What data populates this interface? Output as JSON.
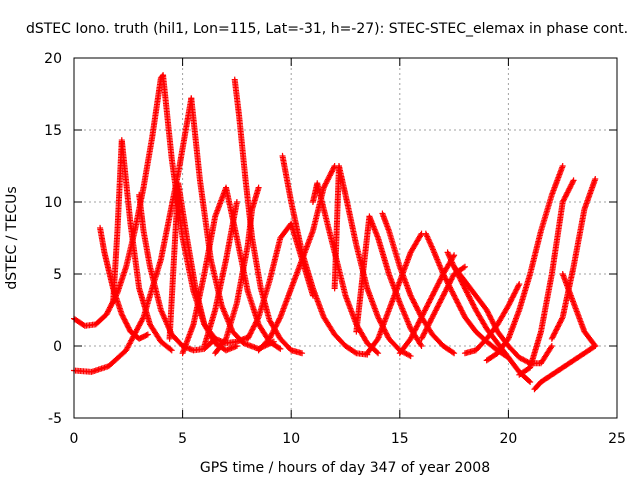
{
  "chart_data": {
    "type": "scatter",
    "title": "dSTEC Iono. truth (hil1, Lon=115, Lat=-31, h=-27): STEC-STEC_elemax in phase cont.",
    "xlabel": "GPS time / hours of day 347 of year 2008",
    "ylabel": "dSTEC  / TECUs",
    "xlim": [
      0,
      25
    ],
    "ylim": [
      -5,
      20
    ],
    "xticks": [
      0,
      5,
      10,
      15,
      20,
      25
    ],
    "yticks": [
      -5,
      0,
      5,
      10,
      15,
      20
    ],
    "grid": true,
    "marker": "+",
    "color": "#ff0000",
    "series": [
      {
        "x": [
          0.0,
          0.5,
          1.0,
          1.5,
          2.0,
          2.4,
          2.8,
          3.2,
          3.6,
          4.0,
          4.1
        ],
        "y": [
          1.9,
          1.4,
          1.5,
          2.2,
          3.7,
          5.5,
          8.0,
          11.0,
          14.5,
          18.6,
          18.8
        ]
      },
      {
        "x": [
          4.1,
          4.5,
          5.0,
          5.5,
          6.0,
          6.5,
          7.0,
          7.5,
          8.0
        ],
        "y": [
          18.8,
          13.0,
          7.5,
          3.8,
          1.5,
          0.5,
          0.2,
          0.3,
          0.6
        ]
      },
      {
        "x": [
          0.0,
          0.8,
          1.6,
          2.4,
          3.2,
          4.0,
          4.8,
          5.4
        ],
        "y": [
          -1.7,
          -1.8,
          -1.4,
          -0.3,
          2.0,
          6.0,
          12.0,
          17.2
        ]
      },
      {
        "x": [
          5.4,
          5.8,
          6.3,
          6.8,
          7.3,
          7.8,
          8.5,
          9.2
        ],
        "y": [
          17.2,
          11.5,
          6.0,
          2.8,
          1.0,
          0.2,
          -0.2,
          0.3
        ]
      },
      {
        "x": [
          1.2,
          1.4,
          1.8,
          2.2,
          2.6,
          3.0,
          3.4
        ],
        "y": [
          8.2,
          6.5,
          4.0,
          2.2,
          1.0,
          0.5,
          0.8
        ]
      },
      {
        "x": [
          1.8,
          2.0,
          2.2,
          2.6,
          3.0,
          3.5,
          4.0,
          4.5
        ],
        "y": [
          3.0,
          8.0,
          14.3,
          8.5,
          4.0,
          1.5,
          0.3,
          -0.3
        ]
      },
      {
        "x": [
          3.0,
          3.2,
          3.5,
          4.0,
          4.5,
          5.0,
          5.5,
          6.0,
          6.5
        ],
        "y": [
          10.5,
          8.0,
          5.5,
          2.5,
          0.8,
          0.0,
          -0.3,
          -0.2,
          0.5
        ]
      },
      {
        "x": [
          4.4,
          4.6,
          4.8,
          5.2,
          5.6,
          6.0,
          6.5,
          7.0,
          7.5
        ],
        "y": [
          0.5,
          6.0,
          11.3,
          7.5,
          4.0,
          1.5,
          0.2,
          -0.3,
          0.0
        ]
      },
      {
        "x": [
          5.0,
          5.5,
          6.0,
          6.5,
          7.0,
          7.5,
          8.0,
          8.5,
          9.0,
          9.5
        ],
        "y": [
          -0.5,
          1.5,
          5.0,
          9.0,
          11.0,
          7.5,
          3.8,
          1.5,
          0.3,
          -0.2
        ]
      },
      {
        "x": [
          6.0,
          6.5,
          7.0,
          7.5
        ],
        "y": [
          0.0,
          2.5,
          6.0,
          10.0
        ]
      },
      {
        "x": [
          7.4,
          7.6,
          7.9,
          8.2,
          8.6,
          9.0,
          9.5,
          10.0,
          10.5
        ],
        "y": [
          18.5,
          16.0,
          11.5,
          7.5,
          4.0,
          1.8,
          0.5,
          -0.3,
          -0.5
        ]
      },
      {
        "x": [
          6.5,
          7.0,
          7.5,
          8.0,
          8.2,
          8.5
        ],
        "y": [
          -0.5,
          0.5,
          3.0,
          7.0,
          9.5,
          11.0
        ]
      },
      {
        "x": [
          8.0,
          8.5,
          9.0,
          9.5,
          10.0,
          10.5,
          11.0
        ],
        "y": [
          0.5,
          2.0,
          4.5,
          7.5,
          8.5,
          6.0,
          3.5
        ]
      },
      {
        "x": [
          8.5,
          9.0,
          9.5,
          10.0,
          10.5,
          11.0,
          11.5,
          12.0
        ],
        "y": [
          -0.3,
          0.5,
          2.0,
          4.0,
          6.0,
          8.0,
          11.0,
          12.5
        ]
      },
      {
        "x": [
          9.6,
          10.0,
          10.5,
          11.0,
          11.5,
          12.0,
          12.5,
          13.0,
          13.5
        ],
        "y": [
          13.2,
          10.0,
          6.5,
          4.0,
          2.0,
          0.8,
          0.0,
          -0.5,
          -0.6
        ]
      },
      {
        "x": [
          11.0,
          11.2,
          11.5,
          12.0,
          12.5,
          13.0,
          13.5,
          14.0
        ],
        "y": [
          10.0,
          11.3,
          9.5,
          6.5,
          3.5,
          1.5,
          0.2,
          -0.5
        ]
      },
      {
        "x": [
          12.0,
          12.2,
          12.5,
          13.0,
          13.5,
          14.0,
          14.5,
          15.0,
          15.5
        ],
        "y": [
          4.0,
          12.5,
          10.5,
          7.0,
          4.0,
          2.0,
          0.5,
          -0.3,
          -0.7
        ]
      },
      {
        "x": [
          13.0,
          13.3,
          13.6,
          14.0,
          14.5,
          15.0,
          15.5,
          16.0
        ],
        "y": [
          1.0,
          5.0,
          9.0,
          7.5,
          5.0,
          3.0,
          1.2,
          0.0
        ]
      },
      {
        "x": [
          14.2,
          14.5,
          15.0,
          15.5,
          16.0,
          16.5,
          17.0,
          17.5
        ],
        "y": [
          9.2,
          8.0,
          5.5,
          3.5,
          2.0,
          0.8,
          0.0,
          -0.5
        ]
      },
      {
        "x": [
          13.5,
          14.0,
          14.5,
          15.0,
          15.5,
          16.0
        ],
        "y": [
          -0.5,
          0.5,
          2.5,
          4.5,
          6.5,
          7.8
        ]
      },
      {
        "x": [
          16.2,
          16.5,
          17.0,
          17.5,
          18.0,
          18.5,
          19.0,
          19.5,
          20.0
        ],
        "y": [
          7.8,
          6.8,
          5.0,
          3.5,
          2.0,
          1.0,
          0.3,
          -0.3,
          -0.8
        ]
      },
      {
        "x": [
          15.0,
          15.5,
          16.0,
          16.5,
          17.0,
          17.5
        ],
        "y": [
          -0.5,
          0.5,
          2.0,
          3.5,
          5.0,
          6.3
        ]
      },
      {
        "x": [
          17.2,
          17.5,
          18.0,
          18.5,
          19.0,
          19.5,
          20.0,
          20.5,
          21.0
        ],
        "y": [
          6.5,
          5.5,
          4.0,
          2.5,
          1.2,
          0.2,
          -0.8,
          -1.8,
          -2.5
        ]
      },
      {
        "x": [
          17.5,
          18.0,
          18.5,
          19.0,
          19.5,
          20.0,
          20.5,
          21.0,
          21.5,
          22.0
        ],
        "y": [
          5.5,
          4.5,
          3.5,
          2.5,
          1.0,
          0.0,
          -0.8,
          -1.2,
          -1.2,
          0.0
        ]
      },
      {
        "x": [
          19.0,
          19.5,
          20.0,
          20.5,
          21.0,
          21.5,
          22.0,
          22.5
        ],
        "y": [
          -1.0,
          -0.5,
          0.5,
          2.5,
          5.0,
          8.0,
          10.5,
          12.5
        ]
      },
      {
        "x": [
          20.5,
          21.0,
          21.5,
          22.0,
          22.5,
          23.0
        ],
        "y": [
          -2.0,
          -1.5,
          1.0,
          5.0,
          10.0,
          11.5
        ]
      },
      {
        "x": [
          21.2,
          21.5,
          22.0,
          22.5,
          23.0,
          23.5,
          24.0
        ],
        "y": [
          -3.0,
          -2.5,
          -2.0,
          -1.5,
          -1.0,
          -0.5,
          0.0
        ]
      },
      {
        "x": [
          22.0,
          22.5,
          23.0,
          23.5,
          24.0
        ],
        "y": [
          0.5,
          2.0,
          5.5,
          9.5,
          11.6
        ]
      },
      {
        "x": [
          22.5,
          23.0,
          23.5,
          24.0
        ],
        "y": [
          5.0,
          3.0,
          1.0,
          0.0
        ]
      },
      {
        "x": [
          16.0,
          16.5,
          17.0,
          17.5,
          18.0
        ],
        "y": [
          0.5,
          2.0,
          3.5,
          5.0,
          5.5
        ]
      },
      {
        "x": [
          18.0,
          18.5,
          19.0,
          19.5,
          20.0,
          20.5
        ],
        "y": [
          -0.5,
          -0.3,
          0.5,
          1.5,
          2.8,
          4.3
        ]
      }
    ]
  }
}
